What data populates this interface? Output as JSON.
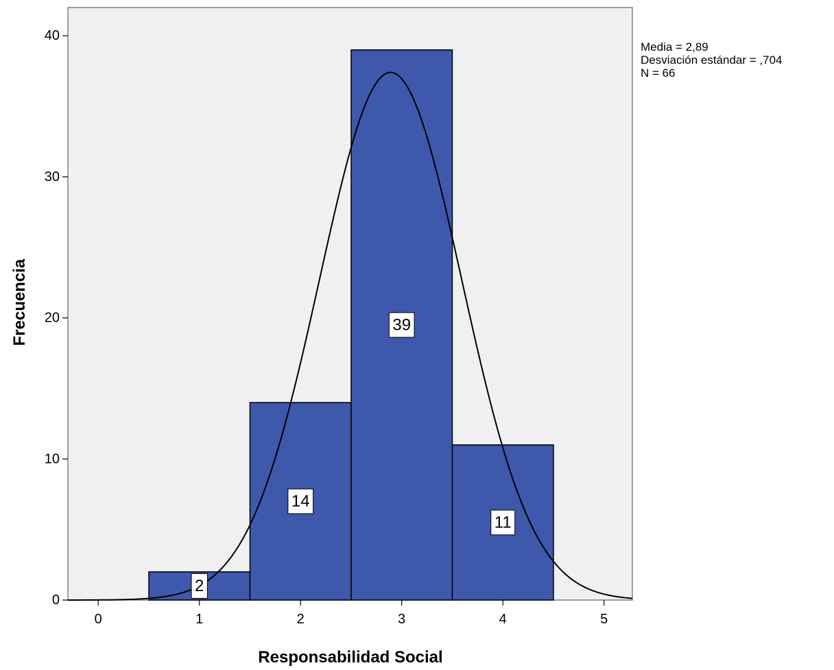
{
  "chart_data": {
    "type": "bar",
    "chart_subtype": "histogram",
    "xlabel": "Responsabilidad Social",
    "ylabel": "Frecuencia",
    "bins": [
      {
        "center": 1,
        "count": 2,
        "label": "2"
      },
      {
        "center": 2,
        "count": 14,
        "label": "14"
      },
      {
        "center": 3,
        "count": 39,
        "label": "39"
      },
      {
        "center": 4,
        "count": 11,
        "label": "11"
      }
    ],
    "bin_width": 1,
    "xlim": [
      -0.3,
      5.28
    ],
    "ylim": [
      0,
      42
    ],
    "x_ticks": [
      0,
      1,
      2,
      3,
      4,
      5
    ],
    "y_ticks": [
      0,
      10,
      20,
      30,
      40
    ],
    "normal_curve": {
      "mean": 2.89,
      "sd": 0.704,
      "n": 66
    },
    "stats": [
      "Media = 2,89",
      "Desviación estándar = ,704",
      "N = 66"
    ],
    "grid": false,
    "colors": {
      "bar_fill": "#3E58AC",
      "bar_stroke": "#000000",
      "plot_background": "#F0F0F0",
      "curve": "#000000"
    }
  }
}
